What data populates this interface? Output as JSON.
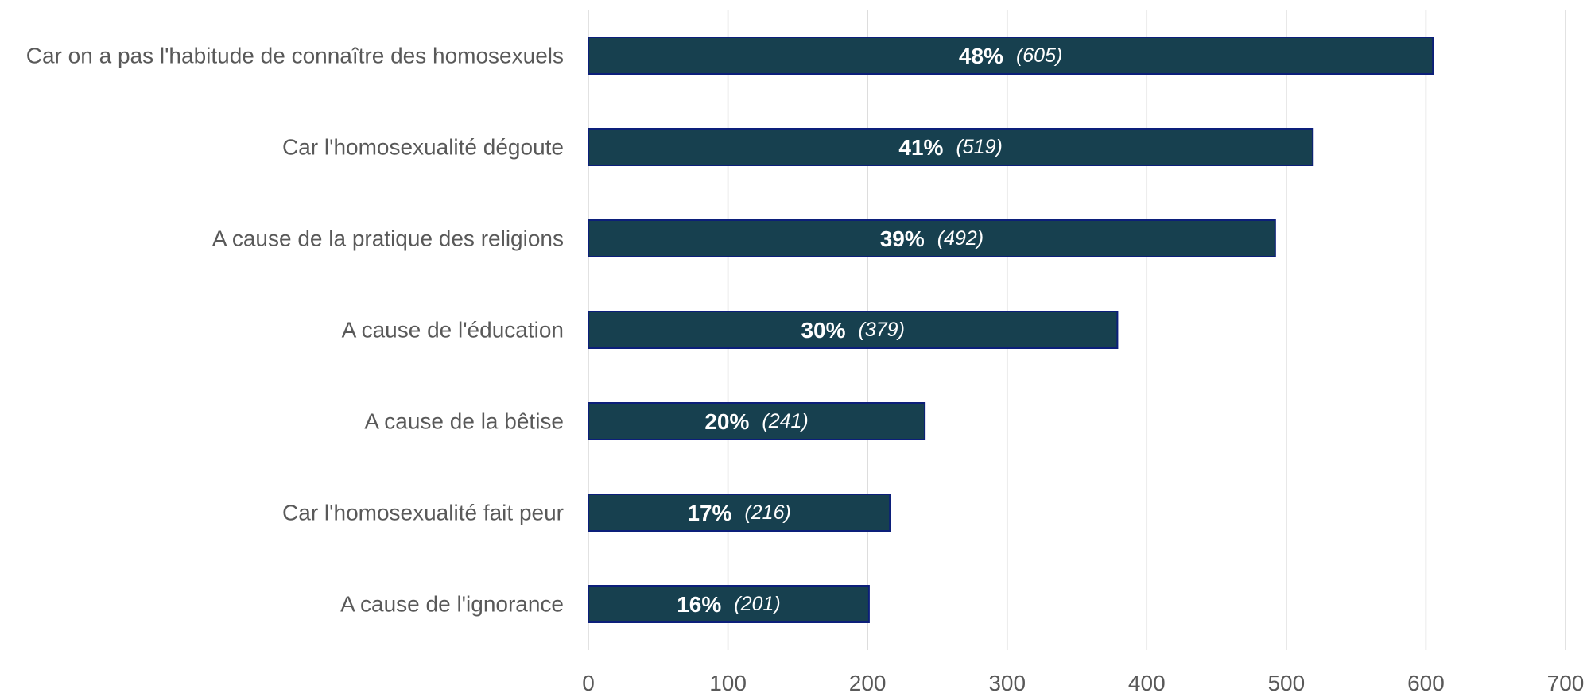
{
  "chart_data": {
    "type": "bar",
    "orientation": "horizontal",
    "categories": [
      "Car on a pas l'habitude de connaître des homosexuels",
      "Car l'homosexualité dégoute",
      "A cause de la pratique des religions",
      "A cause de l'éducation",
      "A cause de la bêtise",
      "Car l'homosexualité fait peur",
      "A cause de l'ignorance"
    ],
    "values": [
      605,
      519,
      492,
      379,
      241,
      216,
      201
    ],
    "data_labels": {
      "percent": [
        "48%",
        "41%",
        "39%",
        "30%",
        "20%",
        "17%",
        "16%"
      ],
      "count": [
        "(605)",
        "(519)",
        "(492)",
        "(379)",
        "(241)",
        "(216)",
        "(201)"
      ]
    },
    "xlim": [
      0,
      700
    ],
    "xticks": [
      0,
      100,
      200,
      300,
      400,
      500,
      600,
      700
    ],
    "grid": "vertical",
    "legend": "none",
    "colors": {
      "bar_fill": "#17404f",
      "bar_stroke": "#0c1f7a",
      "grid": "#d9d9d9",
      "axis_text": "#595959",
      "label_text": "#ffffff"
    }
  }
}
